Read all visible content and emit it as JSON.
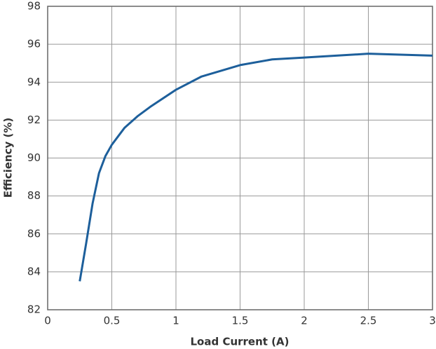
{
  "chart_data": {
    "type": "line",
    "x_label": "Load Current (A)",
    "y_label": "Efficiency (%)",
    "x": [
      0.25,
      0.3,
      0.35,
      0.4,
      0.45,
      0.5,
      0.6,
      0.7,
      0.8,
      1.0,
      1.2,
      1.5,
      1.75,
      2.0,
      2.25,
      2.5,
      2.75,
      3.0
    ],
    "series": [
      {
        "color": "#1d5f9b",
        "values": [
          83.5,
          85.5,
          87.6,
          89.2,
          90.1,
          90.7,
          91.6,
          92.2,
          92.7,
          93.6,
          94.3,
          94.9,
          95.2,
          95.3,
          95.4,
          95.5,
          95.45,
          95.4
        ]
      }
    ],
    "xlim": [
      0,
      3
    ],
    "xticks": [
      0,
      0.5,
      1,
      1.5,
      2,
      2.5,
      3
    ],
    "ylim": [
      82,
      98
    ],
    "yticks": [
      82,
      84,
      86,
      88,
      90,
      92,
      94,
      96,
      98
    ],
    "grid": true
  }
}
